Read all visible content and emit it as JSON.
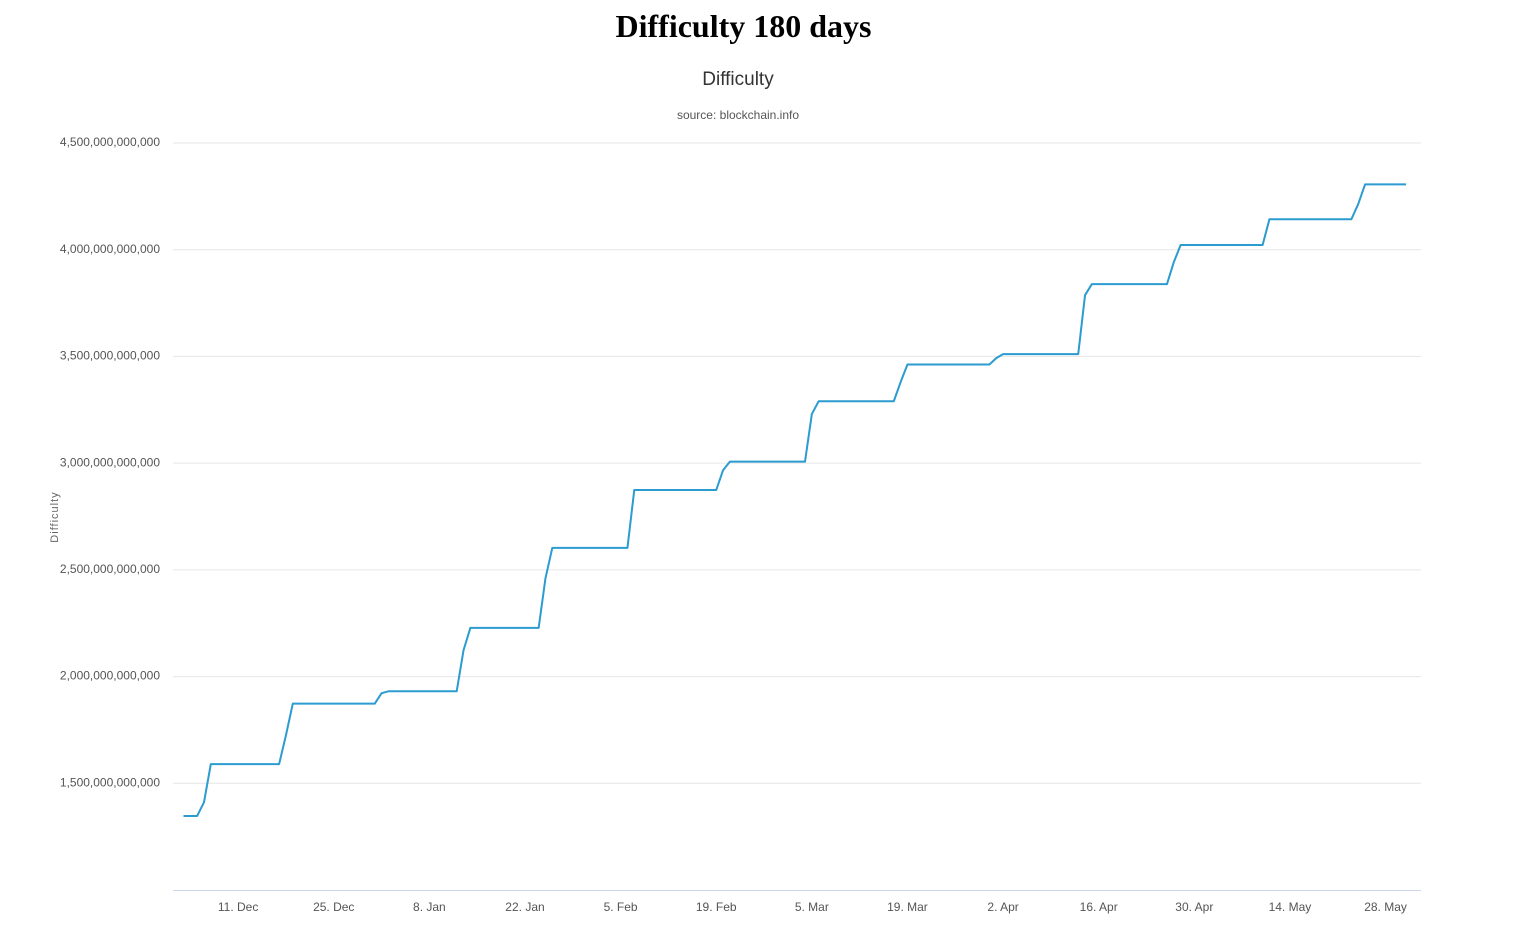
{
  "heading": "Difficulty 180 days",
  "chart_data": {
    "type": "line",
    "title": "Difficulty",
    "subtitle": "source: blockchain.info",
    "ylabel": "Difficulty",
    "color": "#2b9bd0",
    "grid": true,
    "ylim": [
      1000000000000,
      4500000000000
    ],
    "yticks": [
      {
        "value": 1500000000000,
        "label": "1,500,000,000,000"
      },
      {
        "value": 2000000000000,
        "label": "2,000,000,000,000"
      },
      {
        "value": 2500000000000,
        "label": "2,500,000,000,000"
      },
      {
        "value": 3000000000000,
        "label": "3,000,000,000,000"
      },
      {
        "value": 3500000000000,
        "label": "3,500,000,000,000"
      },
      {
        "value": 4000000000000,
        "label": "4,000,000,000,000"
      },
      {
        "value": 4500000000000,
        "label": "4,500,000,000,000"
      }
    ],
    "categories": [
      null,
      null,
      null,
      null,
      null,
      null,
      null,
      null,
      "11. Dec",
      null,
      null,
      null,
      null,
      null,
      null,
      null,
      null,
      null,
      null,
      null,
      null,
      null,
      "25. Dec",
      null,
      null,
      null,
      null,
      null,
      null,
      null,
      null,
      null,
      null,
      null,
      null,
      null,
      "8. Jan",
      null,
      null,
      null,
      null,
      null,
      null,
      null,
      null,
      null,
      null,
      null,
      null,
      null,
      "22. Jan",
      null,
      null,
      null,
      null,
      null,
      null,
      null,
      null,
      null,
      null,
      null,
      null,
      null,
      "5. Feb",
      null,
      null,
      null,
      null,
      null,
      null,
      null,
      null,
      null,
      null,
      null,
      null,
      null,
      "19. Feb",
      null,
      null,
      null,
      null,
      null,
      null,
      null,
      null,
      null,
      null,
      null,
      null,
      null,
      "5. Mar",
      null,
      null,
      null,
      null,
      null,
      null,
      null,
      null,
      null,
      null,
      null,
      null,
      null,
      "19. Mar",
      null,
      null,
      null,
      null,
      null,
      null,
      null,
      null,
      null,
      null,
      null,
      null,
      null,
      "2. Apr",
      null,
      null,
      null,
      null,
      null,
      null,
      null,
      null,
      null,
      null,
      null,
      null,
      null,
      "16. Apr",
      null,
      null,
      null,
      null,
      null,
      null,
      null,
      null,
      null,
      null,
      null,
      null,
      null,
      "30. Apr",
      null,
      null,
      null,
      null,
      null,
      null,
      null,
      null,
      null,
      null,
      null,
      null,
      null,
      "14. May",
      null,
      null,
      null,
      null,
      null,
      null,
      null,
      null,
      null,
      null,
      null,
      null,
      null,
      "28. May",
      null,
      null,
      null
    ],
    "values": [
      1347000000000,
      1347000000000,
      1347000000000,
      1411000000000,
      1590000000000,
      1590000000000,
      1590000000000,
      1590000000000,
      1590000000000,
      1590000000000,
      1590000000000,
      1590000000000,
      1590000000000,
      1590000000000,
      1590000000000,
      1725000000000,
      1873000000000,
      1873000000000,
      1873000000000,
      1873000000000,
      1873000000000,
      1873000000000,
      1873000000000,
      1873000000000,
      1873000000000,
      1873000000000,
      1873000000000,
      1873000000000,
      1873000000000,
      1922000000000,
      1931000000000,
      1931000000000,
      1931000000000,
      1931000000000,
      1931000000000,
      1931000000000,
      1931000000000,
      1931000000000,
      1931000000000,
      1931000000000,
      1931000000000,
      2123000000000,
      2228000000000,
      2228000000000,
      2228000000000,
      2228000000000,
      2228000000000,
      2228000000000,
      2228000000000,
      2228000000000,
      2228000000000,
      2228000000000,
      2228000000000,
      2461000000000,
      2603000000000,
      2603000000000,
      2603000000000,
      2603000000000,
      2603000000000,
      2603000000000,
      2603000000000,
      2603000000000,
      2603000000000,
      2603000000000,
      2603000000000,
      2603000000000,
      2874000000000,
      2874000000000,
      2874000000000,
      2874000000000,
      2874000000000,
      2874000000000,
      2874000000000,
      2874000000000,
      2874000000000,
      2874000000000,
      2874000000000,
      2874000000000,
      2874000000000,
      2967000000000,
      3007000000000,
      3007000000000,
      3007000000000,
      3007000000000,
      3007000000000,
      3007000000000,
      3007000000000,
      3007000000000,
      3007000000000,
      3007000000000,
      3007000000000,
      3007000000000,
      3230000000000,
      3290000000000,
      3290000000000,
      3290000000000,
      3290000000000,
      3290000000000,
      3290000000000,
      3290000000000,
      3290000000000,
      3290000000000,
      3290000000000,
      3290000000000,
      3290000000000,
      3380000000000,
      3462000000000,
      3462000000000,
      3462000000000,
      3462000000000,
      3462000000000,
      3462000000000,
      3462000000000,
      3462000000000,
      3462000000000,
      3462000000000,
      3462000000000,
      3462000000000,
      3462000000000,
      3492000000000,
      3511000000000,
      3511000000000,
      3511000000000,
      3511000000000,
      3511000000000,
      3511000000000,
      3511000000000,
      3511000000000,
      3511000000000,
      3511000000000,
      3511000000000,
      3511000000000,
      3787000000000,
      3839000000000,
      3839000000000,
      3839000000000,
      3839000000000,
      3839000000000,
      3839000000000,
      3839000000000,
      3839000000000,
      3839000000000,
      3839000000000,
      3839000000000,
      3839000000000,
      3942000000000,
      4022000000000,
      4022000000000,
      4022000000000,
      4022000000000,
      4022000000000,
      4022000000000,
      4022000000000,
      4022000000000,
      4022000000000,
      4022000000000,
      4022000000000,
      4022000000000,
      4022000000000,
      4143000000000,
      4143000000000,
      4143000000000,
      4143000000000,
      4143000000000,
      4143000000000,
      4143000000000,
      4143000000000,
      4143000000000,
      4143000000000,
      4143000000000,
      4143000000000,
      4143000000000,
      4214000000000,
      4306000000000,
      4306000000000,
      4306000000000,
      4306000000000,
      4306000000000,
      4306000000000,
      4306000000000
    ]
  }
}
